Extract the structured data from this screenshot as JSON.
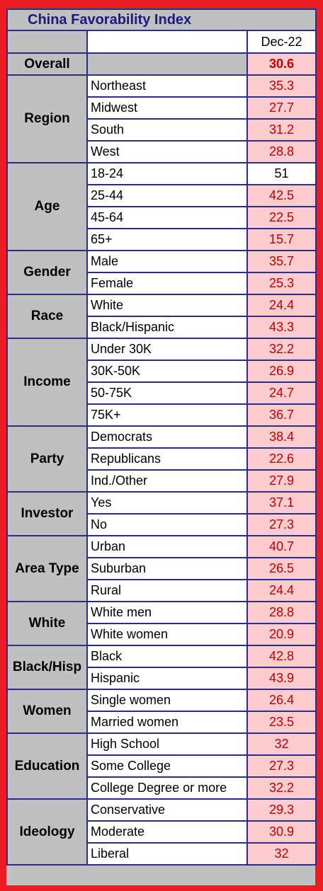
{
  "title": "China Favorability Index",
  "column_header": "Dec-22",
  "overall": {
    "label": "Overall",
    "value": "30.6"
  },
  "groups": [
    {
      "name": "Region",
      "rows": [
        {
          "label": "Northeast",
          "value": "35.3"
        },
        {
          "label": "Midwest",
          "value": "27.7"
        },
        {
          "label": "South",
          "value": "31.2"
        },
        {
          "label": "West",
          "value": "28.8"
        }
      ]
    },
    {
      "name": "Age",
      "rows": [
        {
          "label": "18-24",
          "value": "51",
          "highlight": false
        },
        {
          "label": "25-44",
          "value": "42.5"
        },
        {
          "label": "45-64",
          "value": "22.5"
        },
        {
          "label": "65+",
          "value": "15.7"
        }
      ]
    },
    {
      "name": "Gender",
      "rows": [
        {
          "label": "Male",
          "value": "35.7"
        },
        {
          "label": "Female",
          "value": "25.3"
        }
      ]
    },
    {
      "name": "Race",
      "rows": [
        {
          "label": "White",
          "value": "24.4"
        },
        {
          "label": "Black/Hispanic",
          "value": "43.3"
        }
      ]
    },
    {
      "name": "Income",
      "rows": [
        {
          "label": "Under 30K",
          "value": "32.2"
        },
        {
          "label": "30K-50K",
          "value": "26.9"
        },
        {
          "label": "50-75K",
          "value": "24.7"
        },
        {
          "label": "75K+",
          "value": "36.7"
        }
      ]
    },
    {
      "name": "Party",
      "rows": [
        {
          "label": "Democrats",
          "value": "38.4"
        },
        {
          "label": "Republicans",
          "value": "22.6"
        },
        {
          "label": "Ind./Other",
          "value": "27.9"
        }
      ]
    },
    {
      "name": "Investor",
      "rows": [
        {
          "label": "Yes",
          "value": "37.1"
        },
        {
          "label": "No",
          "value": "27.3"
        }
      ]
    },
    {
      "name": "Area Type",
      "rows": [
        {
          "label": "Urban",
          "value": "40.7"
        },
        {
          "label": "Suburban",
          "value": "26.5"
        },
        {
          "label": "Rural",
          "value": "24.4"
        }
      ]
    },
    {
      "name": "White",
      "rows": [
        {
          "label": "White men",
          "value": "28.8"
        },
        {
          "label": "White women",
          "value": "20.9"
        }
      ]
    },
    {
      "name": "Black/Hisp",
      "rows": [
        {
          "label": "Black",
          "value": "42.8"
        },
        {
          "label": "Hispanic",
          "value": "43.9"
        }
      ]
    },
    {
      "name": "Women",
      "rows": [
        {
          "label": "Single women",
          "value": "26.4"
        },
        {
          "label": "Married women",
          "value": "23.5"
        }
      ]
    },
    {
      "name": "Education",
      "rows": [
        {
          "label": "High School",
          "value": "32"
        },
        {
          "label": "Some College",
          "value": "27.3"
        },
        {
          "label": "College Degree or more",
          "value": "32.2"
        }
      ]
    },
    {
      "name": "Ideology",
      "rows": [
        {
          "label": "Conservative",
          "value": "29.3"
        },
        {
          "label": "Moderate",
          "value": "30.9"
        },
        {
          "label": "Liberal",
          "value": "32"
        }
      ]
    }
  ],
  "colors": {
    "frame": "#ec1c24",
    "header_gray": "#c0c0c0",
    "value_fill": "#fccccf",
    "value_text": "#c00000",
    "title_text": "#1a1a80"
  }
}
